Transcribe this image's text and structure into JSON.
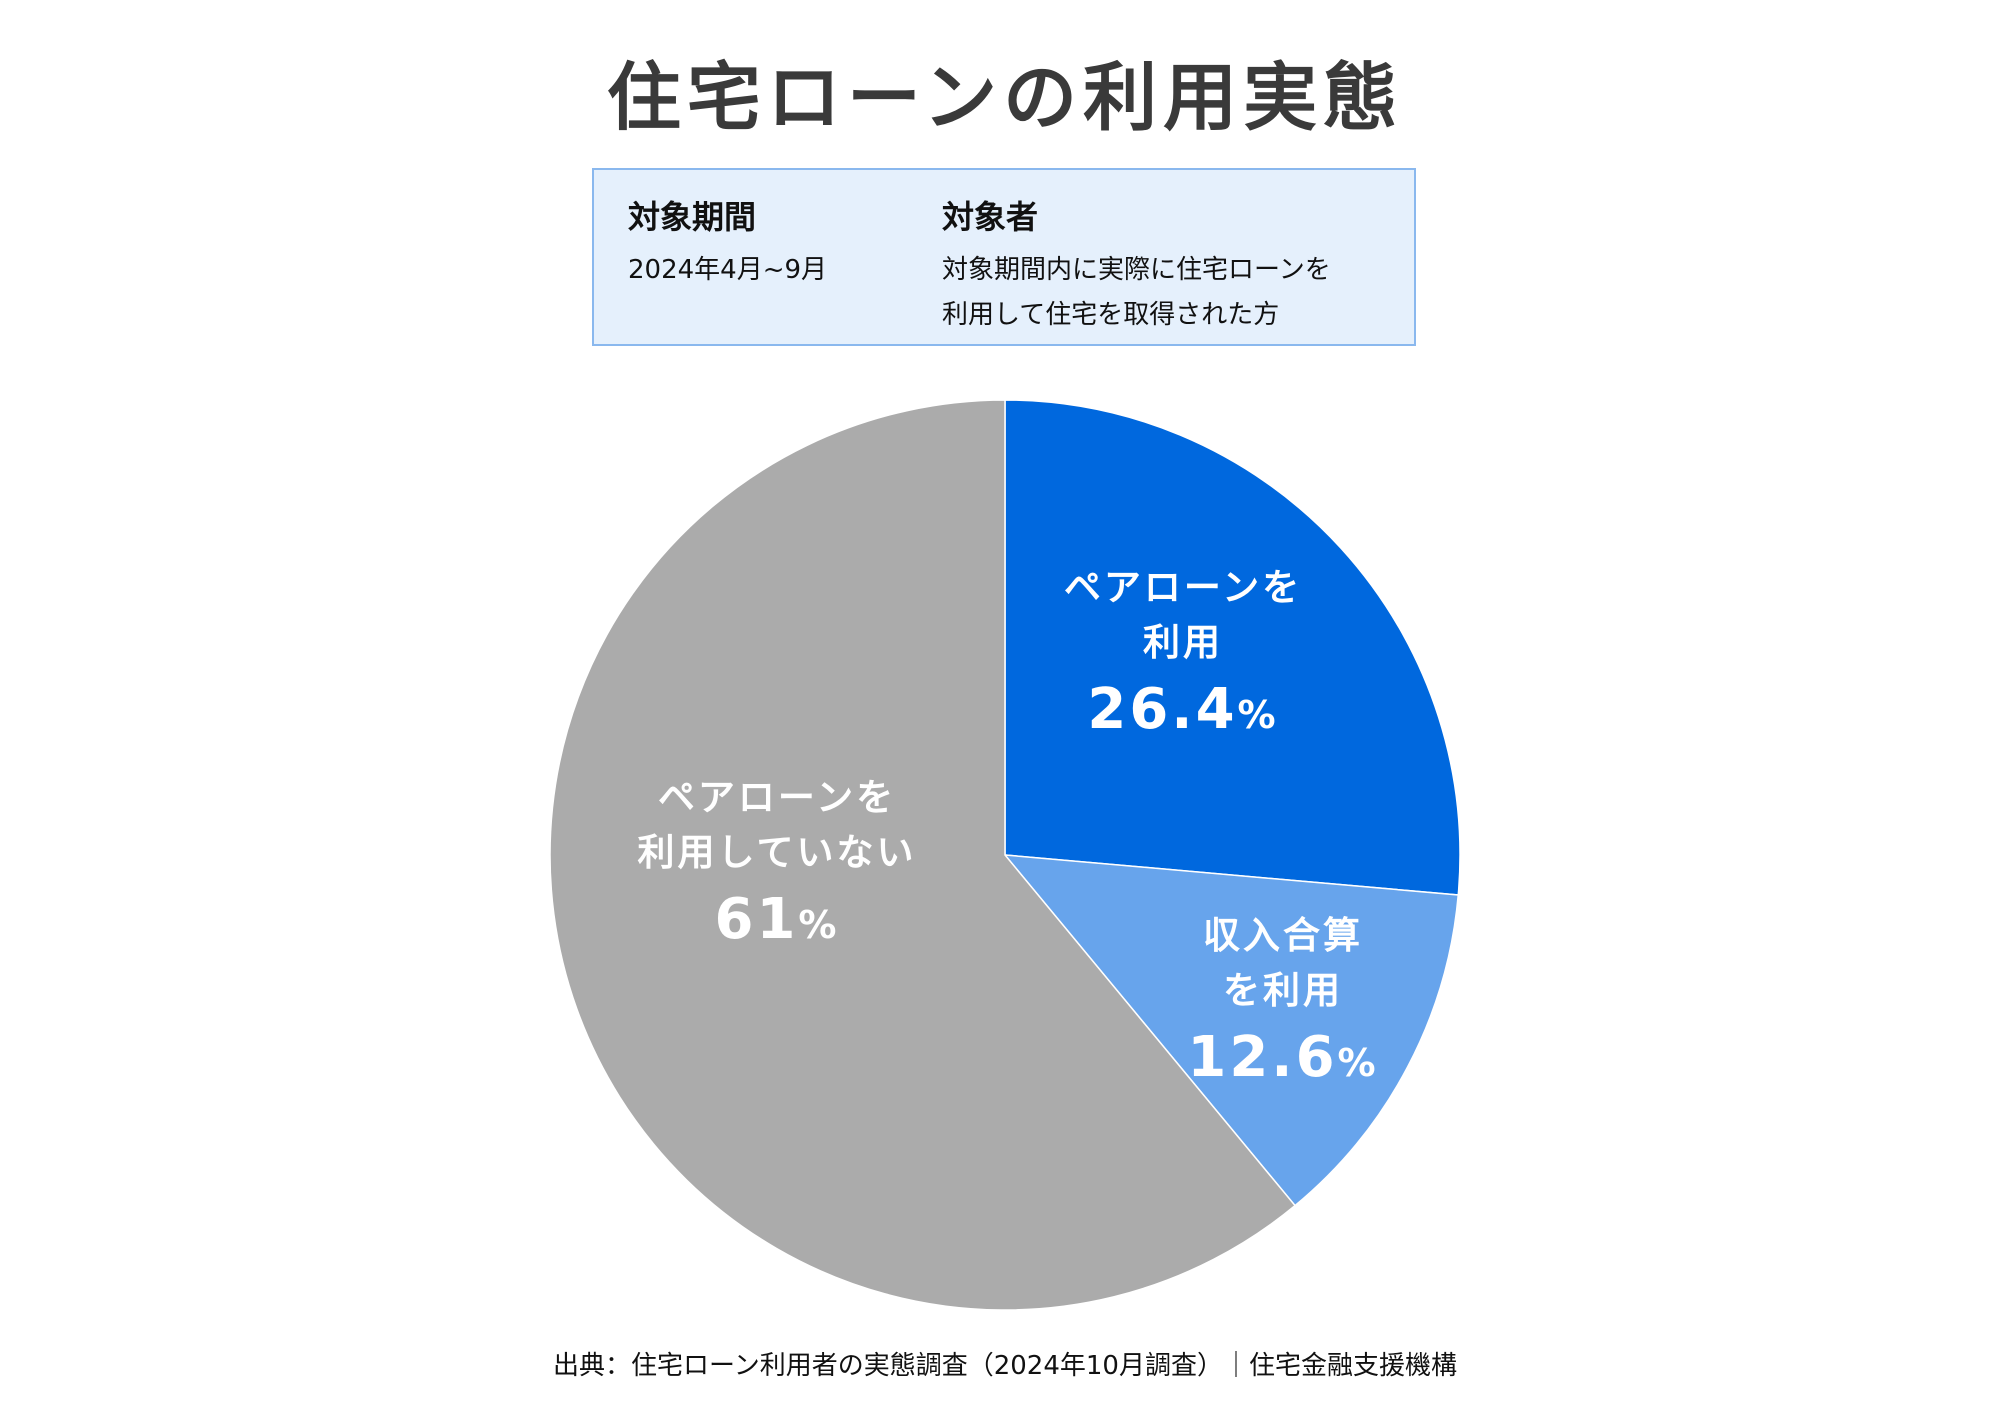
{
  "chart_data": {
    "type": "pie",
    "title": "住宅ローンの利用実態",
    "slices": [
      {
        "label_lines": [
          "ペアローンを",
          "利用"
        ],
        "value": 26.4,
        "value_text": "26.4",
        "color": "#0068de"
      },
      {
        "label_lines": [
          "収入合算",
          "を利用"
        ],
        "value": 12.6,
        "value_text": "12.6",
        "color": "#67a4ec"
      },
      {
        "label_lines": [
          "ペアローンを",
          "利用していない"
        ],
        "value": 61,
        "value_text": "61",
        "color": "#ababab"
      }
    ],
    "unit": "%",
    "start": "top",
    "direction": "clockwise"
  },
  "info": {
    "period_heading": "対象期間",
    "period_value": "2024年4月~9月",
    "target_heading": "対象者",
    "target_line1": "対象期間内に実際に住宅ローンを",
    "target_line2": "利用して住宅を取得された方"
  },
  "footer": "出典：住宅ローン利用者の実態調査（2024年10月調査）｜住宅金融支援機構"
}
